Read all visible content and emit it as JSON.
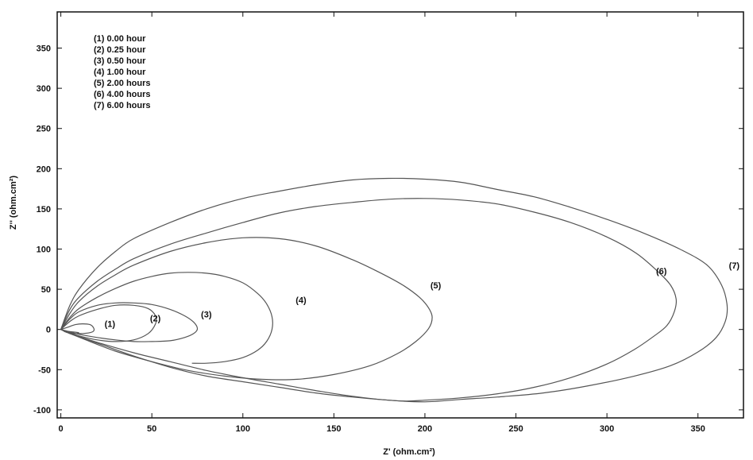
{
  "chart_data": {
    "type": "line",
    "xlabel": "Z' (ohm.cm²)",
    "ylabel": "Z'' (ohm.cm²)",
    "xlim": [
      -2,
      375
    ],
    "ylim": [
      -110,
      395
    ],
    "x_ticks": [
      0,
      50,
      100,
      150,
      200,
      250,
      300,
      350
    ],
    "y_ticks": [
      -100,
      -50,
      0,
      50,
      100,
      150,
      200,
      250,
      300,
      350
    ],
    "grid": false,
    "legend_position": "top-left",
    "legend": [
      "(1) 0.00 hour",
      "(2) 0.25 hour",
      "(3) 0.50 hour",
      "(4) 1.00 hour",
      "(5) 2.00 hours",
      "(6) 4.00 hours",
      "(7) 6.00 hours"
    ],
    "series": [
      {
        "name": "(1) 0.00 hour",
        "label": "(1)",
        "label_at": [
          24,
          3
        ],
        "x": [
          0,
          4,
          8,
          12,
          16,
          18,
          18,
          16,
          12,
          8,
          4,
          2,
          10
        ],
        "y": [
          0,
          3,
          6,
          7,
          6,
          2,
          -2,
          -4,
          -5,
          -5,
          -4,
          -2,
          -4
        ]
      },
      {
        "name": "(2) 0.25 hour",
        "label": "(2)",
        "label_at": [
          49,
          10
        ],
        "x": [
          0,
          5,
          10,
          20,
          30,
          40,
          48,
          52,
          52,
          48,
          40,
          30,
          20,
          10,
          5,
          0
        ],
        "y": [
          0,
          10,
          17,
          25,
          30,
          30,
          26,
          17,
          7,
          -5,
          -13,
          -15,
          -13,
          -8,
          -4,
          0
        ]
      },
      {
        "name": "(3) 0.50 hour",
        "label": "(3)",
        "label_at": [
          77,
          15
        ],
        "x": [
          0,
          5,
          10,
          20,
          30,
          40,
          50,
          60,
          68,
          73,
          75,
          73,
          68,
          60,
          50,
          40,
          30,
          20,
          10,
          5,
          0
        ],
        "y": [
          0,
          13,
          22,
          30,
          33,
          33,
          31,
          25,
          17,
          9,
          1,
          -5,
          -10,
          -14,
          -15,
          -15,
          -13,
          -10,
          -6,
          -3,
          0
        ]
      },
      {
        "name": "(4) 1.00 hour",
        "label": "(4)",
        "label_at": [
          129,
          33
        ],
        "x": [
          0,
          5,
          10,
          20,
          30,
          40,
          50,
          60,
          70,
          80,
          90,
          100,
          108,
          113,
          116,
          116,
          113,
          108,
          100,
          90,
          80,
          72
        ],
        "y": [
          0,
          15,
          26,
          40,
          51,
          60,
          66,
          70,
          71,
          70,
          66,
          58,
          45,
          32,
          16,
          0,
          -15,
          -26,
          -35,
          -40,
          -42,
          -42
        ]
      },
      {
        "name": "(5) 2.00 hours",
        "label": "(5)",
        "label_at": [
          203,
          51
        ],
        "x": [
          0,
          5,
          10,
          20,
          30,
          40,
          60,
          80,
          100,
          120,
          140,
          160,
          175,
          188,
          197,
          202,
          204,
          202,
          195,
          185,
          170,
          150,
          130,
          110,
          90,
          70,
          50,
          30,
          15,
          5,
          0
        ],
        "y": [
          0,
          20,
          35,
          54,
          68,
          80,
          97,
          108,
          114,
          113,
          104,
          87,
          71,
          55,
          40,
          27,
          15,
          1,
          -15,
          -30,
          -45,
          -56,
          -62,
          -62,
          -58,
          -51,
          -40,
          -27,
          -14,
          -5,
          0
        ]
      },
      {
        "name": "(6) 4.00 hours",
        "label": "(6)",
        "label_at": [
          327,
          69
        ],
        "x": [
          0,
          5,
          10,
          20,
          30,
          40,
          60,
          80,
          100,
          120,
          140,
          160,
          180,
          200,
          220,
          240,
          260,
          280,
          300,
          316,
          328,
          335,
          338,
          337,
          333,
          326,
          315,
          300,
          280,
          260,
          240,
          220,
          200,
          190,
          180,
          160,
          140,
          120,
          100,
          80,
          60,
          40,
          20,
          5,
          0
        ],
        "y": [
          0,
          25,
          40,
          60,
          75,
          88,
          106,
          120,
          133,
          145,
          153,
          158,
          162,
          163,
          161,
          156,
          146,
          133,
          115,
          95,
          72,
          55,
          38,
          22,
          5,
          -8,
          -25,
          -43,
          -60,
          -72,
          -80,
          -85,
          -88,
          -89,
          -88,
          -84,
          -79,
          -72,
          -65,
          -58,
          -47,
          -33,
          -17,
          -5,
          0
        ]
      },
      {
        "name": "(7) 6.00 hours",
        "label": "(7)",
        "label_at": [
          367,
          76
        ],
        "x": [
          0,
          5,
          10,
          20,
          30,
          40,
          60,
          80,
          100,
          120,
          140,
          160,
          180,
          200,
          220,
          240,
          260,
          280,
          300,
          320,
          340,
          355,
          363,
          366,
          365,
          360,
          350,
          335,
          315,
          290,
          265,
          240,
          220,
          200,
          180,
          160,
          140,
          120,
          100,
          80,
          60,
          40,
          20,
          5,
          0
        ],
        "y": [
          0,
          30,
          50,
          77,
          97,
          113,
          133,
          150,
          163,
          172,
          180,
          186,
          188,
          187,
          183,
          174,
          165,
          152,
          137,
          120,
          100,
          80,
          55,
          30,
          10,
          -10,
          -28,
          -45,
          -58,
          -70,
          -79,
          -84,
          -87,
          -90,
          -88,
          -83,
          -76,
          -68,
          -60,
          -51,
          -40,
          -29,
          -16,
          -5,
          0
        ]
      }
    ]
  }
}
